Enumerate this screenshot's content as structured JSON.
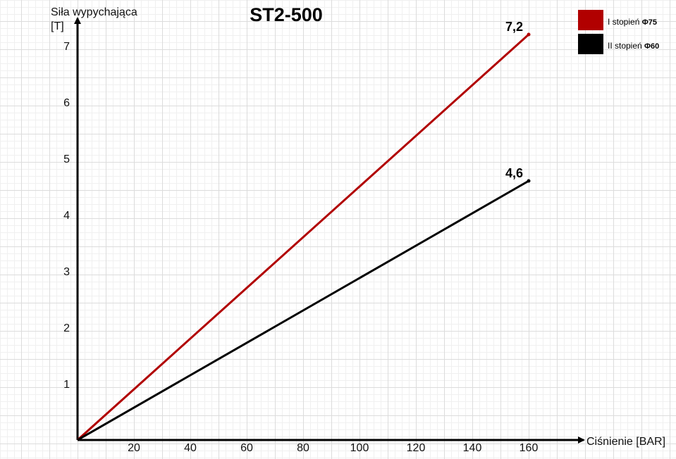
{
  "chart_data": {
    "type": "line",
    "title": "ST2-500",
    "xlabel": "Ciśnienie [BAR]",
    "ylabel_lines": [
      "Siła wypychająca",
      "[T]"
    ],
    "x_ticks": [
      20,
      40,
      60,
      80,
      100,
      120,
      140,
      160
    ],
    "y_ticks": [
      1,
      2,
      3,
      4,
      5,
      6,
      7
    ],
    "xlim": [
      0,
      175
    ],
    "ylim": [
      0,
      7.6
    ],
    "grid": true,
    "legend_position": "top-right",
    "series": [
      {
        "name": "I stopień",
        "name_suffix": "Φ75",
        "color": "#b10000",
        "x": [
          0,
          160
        ],
        "y": [
          0,
          7.2
        ],
        "end_label": "7,2"
      },
      {
        "name": "II stopień",
        "name_suffix": "Φ60",
        "color": "#000000",
        "x": [
          0,
          160
        ],
        "y": [
          0,
          4.6
        ],
        "end_label": "4,6"
      }
    ]
  }
}
